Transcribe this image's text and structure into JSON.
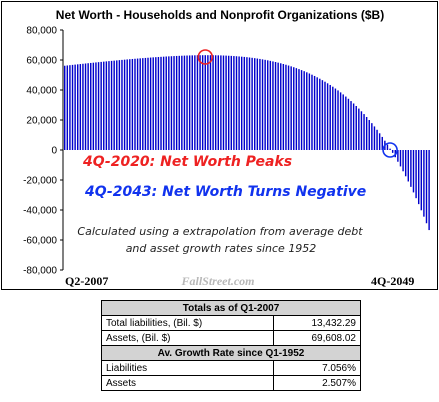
{
  "chart_data": {
    "type": "bar",
    "title": "Net Worth - Households and Nonprofit Organizations ($B)",
    "x_start_label": "Q2-2007",
    "x_end_label": "4Q-2049",
    "watermark": "FallStreet.com",
    "ylim": [
      -80000,
      80000
    ],
    "yticks": [
      "80,000",
      "60,000",
      "40,000",
      "20,000",
      "0",
      "-20,000",
      "-40,000",
      "-60,000",
      "-80,000"
    ],
    "bar_color": "#0000cc",
    "grid": false,
    "annotations": [
      {
        "text": "4Q-2020: Net Worth Peaks",
        "color": "#ee2222"
      },
      {
        "text": "4Q-2043: Net Worth Turns Negative",
        "color": "#1133ee"
      },
      {
        "text": "Calculated using a extrapolation from average debt",
        "color": "#222222"
      },
      {
        "text": "and asset growth rates since 1952",
        "color": "#222222"
      }
    ],
    "markers": [
      {
        "label": "4Q-2020",
        "value": 62000,
        "color": "#ee2222"
      },
      {
        "label": "4Q-2043",
        "value": 0,
        "color": "#1133ee"
      }
    ],
    "series": [
      {
        "values": [
          56176,
          56366,
          56556,
          56745,
          56932,
          57119,
          57304,
          57488,
          57671,
          57853,
          58033,
          58212,
          58389,
          58565,
          58739,
          58911,
          59082,
          59251,
          59418,
          59583,
          59746,
          59907,
          60066,
          60223,
          60377,
          60529,
          60678,
          60825,
          60969,
          61110,
          61248,
          61383,
          61515,
          61643,
          61768,
          61889,
          62006,
          62119,
          62228,
          62333,
          62433,
          62528,
          62618,
          62703,
          62782,
          62856,
          62923,
          62984,
          63039,
          63086,
          63127,
          63160,
          63185,
          63202,
          63210,
          63210,
          63200,
          63181,
          63152,
          63112,
          63062,
          63001,
          62928,
          62843,
          62746,
          62636,
          62512,
          62375,
          62223,
          62056,
          61874,
          61675,
          61460,
          61228,
          60978,
          60709,
          60421,
          60113,
          59784,
          59434,
          59062,
          58667,
          58248,
          57805,
          57336,
          56840,
          56317,
          55766,
          55185,
          54574,
          53931,
          53256,
          52548,
          51805,
          51026,
          50210,
          49356,
          48462,
          47528,
          46552,
          45532,
          44467,
          43356,
          42197,
          40988,
          39728,
          38416,
          37050,
          35627,
          34147,
          32607,
          31006,
          29341,
          27610,
          25812,
          23944,
          22004,
          19989,
          17898,
          15727,
          13475,
          11138,
          8714,
          6200,
          3593,
          890,
          -1912,
          -4818,
          -7828,
          -10947,
          -14177,
          -17521,
          -20983,
          -24567,
          -28275,
          -32113,
          -36084,
          -40192,
          -44441,
          -48835,
          -53381
        ]
      }
    ]
  },
  "table": {
    "title": "Totals as of Q1-2007",
    "rows": [
      {
        "label": "Total liabilities, (Bil. $)",
        "value": "13,432.29"
      },
      {
        "label": "Assets, (Bil. $)",
        "value": "69,608.02"
      }
    ],
    "subtitle": "Av. Growth Rate since Q1-1952",
    "rates": [
      {
        "label": "Liabilities",
        "value": "7.056%"
      },
      {
        "label": "Assets",
        "value": "2.507%"
      }
    ]
  }
}
